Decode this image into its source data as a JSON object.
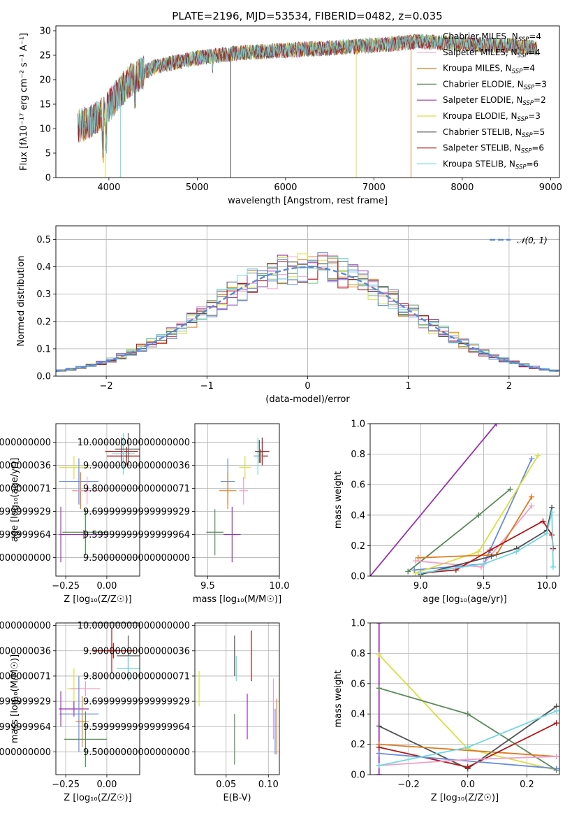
{
  "figure_title": "PLATE=2196, MJD=53534, FIBERID=0482, z=0.035",
  "chart_data": [
    {
      "type": "line",
      "name": "spectrum",
      "xlabel": "wavelength [Angstrom, rest frame]",
      "ylabel": "Flux [fλ10⁻¹⁷ erg cm⁻² s⁻¹ A⁻¹]",
      "xlim": [
        3400,
        9100
      ],
      "ylim": [
        0,
        31
      ],
      "xticks": [
        4000,
        5000,
        6000,
        7000,
        8000,
        9000
      ],
      "yticks": [
        0,
        5,
        10,
        15,
        20,
        25,
        30
      ],
      "continuum_anchors": {
        "x": [
          3650,
          3800,
          3950,
          4100,
          4250,
          4500,
          5000,
          5500,
          6000,
          6500,
          7000,
          7500,
          8000,
          8500,
          8850
        ],
        "y": [
          10.5,
          11.5,
          13.5,
          17,
          20,
          22.5,
          24.5,
          25.5,
          26,
          26.5,
          27,
          27.8,
          27.3,
          27,
          26.5
        ]
      },
      "legend": [
        {
          "label": "Chabrier MILES, N",
          "sub": "SSP",
          "suffix": "=4",
          "color": "#7fbf7f"
        },
        {
          "label": "Salpeter MILES, N",
          "sub": "SSP",
          "suffix": "=4",
          "color": "#f0a0c8"
        },
        {
          "label": "Kroupa MILES, N",
          "sub": "SSP",
          "suffix": "=4",
          "color": "#e07b20"
        },
        {
          "label": "Chabrier ELODIE, N",
          "sub": "SSP",
          "suffix": "=3",
          "color": "#5a8a5a"
        },
        {
          "label": "Salpeter ELODIE, N",
          "sub": "SSP",
          "suffix": "=2",
          "color": "#9a30b0"
        },
        {
          "label": "Kroupa ELODIE, N",
          "sub": "SSP",
          "suffix": "=3",
          "color": "#d8e040"
        },
        {
          "label": "Chabrier STELIB, N",
          "sub": "SSP",
          "suffix": "=5",
          "color": "#505050"
        },
        {
          "label": "Salpeter STELIB, N",
          "sub": "SSP",
          "suffix": "=6",
          "color": "#b01818"
        },
        {
          "label": "Kroupa STELIB, N",
          "sub": "SSP",
          "suffix": "=6",
          "color": "#70d8e0"
        }
      ]
    },
    {
      "type": "step-histogram",
      "name": "residuals",
      "xlabel": "(data-model)/error",
      "ylabel": "Normed distribution",
      "xlim": [
        -2.5,
        2.5
      ],
      "ylim": [
        0,
        0.55
      ],
      "xticks": [
        -2,
        -1,
        0,
        1,
        2
      ],
      "yticks": [
        0.0,
        0.1,
        0.2,
        0.3,
        0.4,
        0.5
      ],
      "bin_width": 0.1,
      "legend_label": "𝒩(0, 1)",
      "reference_color": "#5a8ad8",
      "series_colors": [
        "#7fbf7f",
        "#f0a0c8",
        "#e07b20",
        "#5a8a5a",
        "#9a30b0",
        "#d8e040",
        "#505050",
        "#b01818",
        "#70d8e0",
        "#6a8ae0"
      ]
    },
    {
      "type": "errorbar",
      "name": "age-vs-Z",
      "xlabel": "Z [log₁₀(Z/Z☉)]",
      "ylabel": "age  [log₁₀(age/yr)]",
      "xlim": [
        -0.31,
        0.2
      ],
      "ylim": [
        9.42,
        10.08
      ],
      "xticks": [
        -0.25,
        0.0
      ],
      "yticks": [
        9.5,
        9.6,
        9.7,
        9.8,
        9.9,
        10.0
      ],
      "points": [
        {
          "x": 0.09,
          "y": 9.96,
          "xerr": 0.1,
          "yerr": 0.06,
          "color": "#b01818"
        },
        {
          "x": 0.12,
          "y": 9.94,
          "xerr": 0.12,
          "yerr": 0.04,
          "color": "#b01818"
        },
        {
          "x": 0.1,
          "y": 9.95,
          "xerr": 0.07,
          "yerr": 0.09,
          "color": "#70d8e0"
        },
        {
          "x": 0.13,
          "y": 9.97,
          "xerr": 0.08,
          "yerr": 0.07,
          "color": "#505050"
        },
        {
          "x": -0.2,
          "y": 9.89,
          "xerr": 0.09,
          "yerr": 0.05,
          "color": "#d8e040"
        },
        {
          "x": -0.17,
          "y": 9.83,
          "xerr": 0.12,
          "yerr": 0.1,
          "color": "#6a8ae0"
        },
        {
          "x": -0.16,
          "y": 9.79,
          "xerr": 0.05,
          "yerr": 0.08,
          "color": "#e07b20"
        },
        {
          "x": -0.12,
          "y": 9.79,
          "xerr": 0.08,
          "yerr": 0.06,
          "color": "#f0a0c8"
        },
        {
          "x": -0.13,
          "y": 9.61,
          "xerr": 0.14,
          "yerr": 0.1,
          "color": "#5a8a5a"
        },
        {
          "x": -0.28,
          "y": 9.6,
          "xerr": 0.01,
          "yerr": 0.12,
          "color": "#9a30b0"
        },
        {
          "x": -0.14,
          "y": 9.6,
          "xerr": 0.14,
          "yerr": 0.02,
          "color": "#9a30b0"
        }
      ]
    },
    {
      "type": "errorbar",
      "name": "age-vs-mass",
      "xlabel": "mass [log₁₀(M/M☉)]",
      "ylabel": "",
      "xlim": [
        9.41,
        10.0
      ],
      "ylim": [
        9.42,
        10.08
      ],
      "xticks": [
        9.5,
        10.0
      ],
      "yticks": [
        9.5,
        9.6,
        9.7,
        9.8,
        9.9,
        10.0
      ],
      "points": [
        {
          "x": 9.88,
          "y": 9.96,
          "xerr": 0.05,
          "yerr": 0.06,
          "color": "#b01818"
        },
        {
          "x": 9.87,
          "y": 9.94,
          "xerr": 0.05,
          "yerr": 0.03,
          "color": "#b01818"
        },
        {
          "x": 9.85,
          "y": 9.94,
          "xerr": 0.03,
          "yerr": 0.08,
          "color": "#70d8e0"
        },
        {
          "x": 9.86,
          "y": 9.96,
          "xerr": 0.02,
          "yerr": 0.05,
          "color": "#505050"
        },
        {
          "x": 9.76,
          "y": 9.89,
          "xerr": 0.04,
          "yerr": 0.05,
          "color": "#d8e040"
        },
        {
          "x": 9.64,
          "y": 9.83,
          "xerr": 0.05,
          "yerr": 0.1,
          "color": "#6a8ae0"
        },
        {
          "x": 9.64,
          "y": 9.79,
          "xerr": 0.06,
          "yerr": 0.08,
          "color": "#e07b20"
        },
        {
          "x": 9.75,
          "y": 9.79,
          "xerr": 0.03,
          "yerr": 0.06,
          "color": "#f0a0c8"
        },
        {
          "x": 9.55,
          "y": 9.61,
          "xerr": 0.06,
          "yerr": 0.1,
          "color": "#5a8a5a"
        },
        {
          "x": 9.67,
          "y": 9.6,
          "xerr": 0.06,
          "yerr": 0.12,
          "color": "#9a30b0"
        }
      ]
    },
    {
      "type": "line",
      "name": "weight-vs-age",
      "xlabel": "age  [log₁₀(age/yr)]",
      "ylabel": "mass weight",
      "xlim": [
        8.6,
        10.1
      ],
      "ylim": [
        0,
        1.0
      ],
      "xticks": [
        9.0,
        9.5,
        10.0
      ],
      "yticks": [
        0.0,
        0.2,
        0.4,
        0.6,
        0.8,
        1.0
      ],
      "series": [
        {
          "color": "#9a30b0",
          "x": [
            8.55,
            9.6
          ],
          "y": [
            -0.05,
            1.0
          ]
        },
        {
          "color": "#5a8a5a",
          "x": [
            8.9,
            9.46,
            9.71
          ],
          "y": [
            0.03,
            0.4,
            0.57
          ]
        },
        {
          "color": "#6a8ae0",
          "x": [
            8.95,
            9.5,
            9.88
          ],
          "y": [
            0.04,
            0.08,
            0.77
          ]
        },
        {
          "color": "#d8e040",
          "x": [
            8.96,
            9.46,
            9.93
          ],
          "y": [
            0.02,
            0.16,
            0.79
          ]
        },
        {
          "color": "#f0a0c8",
          "x": [
            8.96,
            9.48,
            9.88
          ],
          "y": [
            0.1,
            0.06,
            0.46
          ]
        },
        {
          "color": "#e07b20",
          "x": [
            8.98,
            9.6,
            9.88
          ],
          "y": [
            0.12,
            0.14,
            0.52
          ]
        },
        {
          "color": "#505050",
          "x": [
            9.0,
            9.56,
            9.76,
            10.0,
            10.04
          ],
          "y": [
            0.01,
            0.13,
            0.18,
            0.3,
            0.45
          ]
        },
        {
          "color": "#b01818",
          "x": [
            9.0,
            9.28,
            9.55,
            9.97,
            10.04,
            10.05
          ],
          "y": [
            0.02,
            0.04,
            0.17,
            0.36,
            0.27,
            0.18
          ]
        },
        {
          "color": "#70d8e0",
          "x": [
            9.0,
            9.5,
            9.76,
            10.0,
            10.04,
            10.05
          ],
          "y": [
            0.02,
            0.08,
            0.16,
            0.28,
            0.42,
            0.06
          ]
        }
      ]
    },
    {
      "type": "errorbar",
      "name": "mass-vs-Z",
      "xlabel": "Z [log₁₀(Z/Z☉)]",
      "ylabel": "mass [log₁₀(M/M☉)]",
      "xlim": [
        -0.31,
        0.2
      ],
      "ylim": [
        9.41,
        10.01
      ],
      "xticks": [
        -0.25,
        0.0
      ],
      "yticks": [
        9.5,
        9.6,
        9.7,
        9.8,
        9.9,
        10.0
      ],
      "points": [
        {
          "x": 0.04,
          "y": 9.9,
          "xerr": 0.13,
          "yerr": 0.03,
          "color": "#b01818"
        },
        {
          "x": 0.03,
          "y": 9.9,
          "xerr": 0.02,
          "yerr": 0.09,
          "color": "#b01818"
        },
        {
          "x": 0.13,
          "y": 9.88,
          "xerr": 0.07,
          "yerr": 0.08,
          "color": "#505050"
        },
        {
          "x": 0.13,
          "y": 9.83,
          "xerr": 0.07,
          "yerr": 0.05,
          "color": "#70d8e0"
        },
        {
          "x": -0.2,
          "y": 9.75,
          "xerr": 0.04,
          "yerr": 0.08,
          "color": "#d8e040"
        },
        {
          "x": -0.13,
          "y": 9.75,
          "xerr": 0.09,
          "yerr": 0.03,
          "color": "#f0a0c8"
        },
        {
          "x": -0.2,
          "y": 9.67,
          "xerr": 0.09,
          "yerr": 0.03,
          "color": "#9a30b0"
        },
        {
          "x": -0.17,
          "y": 9.65,
          "xerr": 0.12,
          "yerr": 0.15,
          "color": "#6a8ae0"
        },
        {
          "x": -0.15,
          "y": 9.62,
          "xerr": 0.04,
          "yerr": 0.1,
          "color": "#e07b20"
        },
        {
          "x": -0.13,
          "y": 9.55,
          "xerr": 0.13,
          "yerr": 0.11,
          "color": "#5a8a5a"
        },
        {
          "x": -0.28,
          "y": 9.67,
          "xerr": 0.01,
          "yerr": 0.07,
          "color": "#9a30b0"
        }
      ]
    },
    {
      "type": "errorbar",
      "name": "mass-vs-EBV",
      "xlabel": "E(B-V)",
      "ylabel": "",
      "xlim": [
        0.013,
        0.113
      ],
      "ylim": [
        9.41,
        10.01
      ],
      "xticks": [
        0.05,
        0.1
      ],
      "yticks": [
        9.5,
        9.6,
        9.7,
        9.8,
        9.9,
        10.0
      ],
      "points": [
        {
          "x": 0.08,
          "y": 9.88,
          "xerr": 0.0,
          "yerr": 0.1,
          "color": "#b01818"
        },
        {
          "x": 0.06,
          "y": 9.88,
          "xerr": 0.0,
          "yerr": 0.08,
          "color": "#505050"
        },
        {
          "x": 0.062,
          "y": 9.83,
          "xerr": 0.0,
          "yerr": 0.05,
          "color": "#70d8e0"
        },
        {
          "x": 0.018,
          "y": 9.75,
          "xerr": 0.0,
          "yerr": 0.07,
          "color": "#d8e040"
        },
        {
          "x": 0.106,
          "y": 9.67,
          "xerr": 0.0,
          "yerr": 0.12,
          "color": "#f0a0c8"
        },
        {
          "x": 0.075,
          "y": 9.64,
          "xerr": 0.0,
          "yerr": 0.09,
          "color": "#9a30b0"
        },
        {
          "x": 0.06,
          "y": 9.55,
          "xerr": 0.0,
          "yerr": 0.1,
          "color": "#5a8a5a"
        },
        {
          "x": 0.11,
          "y": 9.6,
          "xerr": 0.0,
          "yerr": 0.11,
          "color": "#e07b20"
        },
        {
          "x": 0.108,
          "y": 9.58,
          "xerr": 0.0,
          "yerr": 0.09,
          "color": "#6a8ae0"
        }
      ]
    },
    {
      "type": "line",
      "name": "weight-vs-Z",
      "xlabel": "Z [log₁₀(Z/Z☉)]",
      "ylabel": "mass weight",
      "xlim": [
        -0.33,
        0.31
      ],
      "ylim": [
        0,
        1.0
      ],
      "xticks": [
        -0.2,
        0.0,
        0.2
      ],
      "yticks": [
        0.0,
        0.2,
        0.4,
        0.6,
        0.8,
        1.0
      ],
      "series": [
        {
          "color": "#9a30b0",
          "x": [
            -0.3,
            -0.3
          ],
          "y": [
            0.0,
            1.0
          ]
        },
        {
          "color": "#d8e040",
          "x": [
            -0.3,
            0.0,
            0.3
          ],
          "y": [
            0.79,
            0.17,
            0.03
          ]
        },
        {
          "color": "#5a8a5a",
          "x": [
            -0.3,
            0.0,
            0.3
          ],
          "y": [
            0.57,
            0.4,
            0.03
          ]
        },
        {
          "color": "#505050",
          "x": [
            -0.3,
            0.0,
            0.3
          ],
          "y": [
            0.32,
            0.04,
            0.45
          ]
        },
        {
          "color": "#e07b20",
          "x": [
            -0.3,
            0.3
          ],
          "y": [
            0.2,
            0.12
          ]
        },
        {
          "color": "#b01818",
          "x": [
            -0.3,
            0.0,
            0.3
          ],
          "y": [
            0.18,
            0.05,
            0.34
          ]
        },
        {
          "color": "#6a8ae0",
          "x": [
            -0.3,
            0.3
          ],
          "y": [
            0.14,
            0.04
          ]
        },
        {
          "color": "#f0a0c8",
          "x": [
            -0.3,
            0.0,
            0.3
          ],
          "y": [
            0.06,
            0.1,
            0.12
          ]
        },
        {
          "color": "#70d8e0",
          "x": [
            -0.3,
            0.0,
            0.3
          ],
          "y": [
            0.06,
            0.18,
            0.42
          ]
        }
      ]
    }
  ]
}
